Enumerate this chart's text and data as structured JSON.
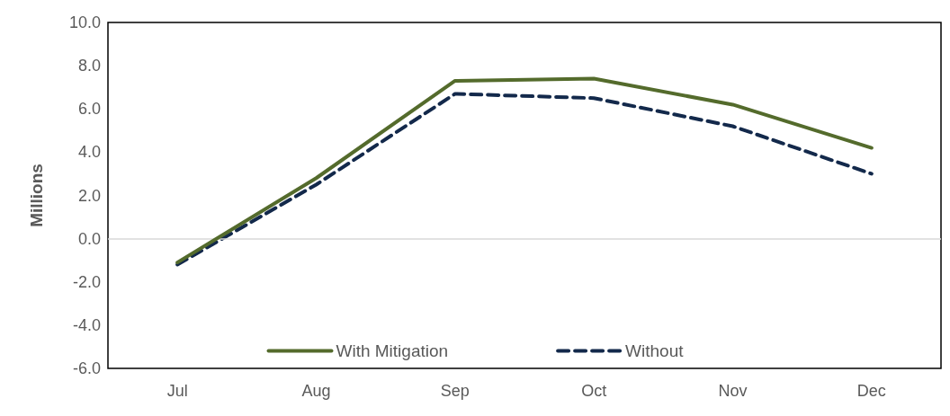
{
  "chart_data": {
    "type": "line",
    "ylabel": "Millions",
    "categories": [
      "Jul",
      "Aug",
      "Sep",
      "Oct",
      "Nov",
      "Dec"
    ],
    "series": [
      {
        "name": "With Mitigation",
        "color": "#546b2c",
        "line_style": "solid",
        "values": [
          -1.1,
          2.8,
          7.3,
          7.4,
          6.2,
          4.2
        ]
      },
      {
        "name": "Without",
        "color": "#13294b",
        "line_style": "dashed",
        "values": [
          -1.2,
          2.5,
          6.7,
          6.5,
          5.2,
          3.0
        ]
      }
    ],
    "ylim": [
      -6,
      10
    ],
    "yticks": [
      {
        "value": -6,
        "label": "-6.0"
      },
      {
        "value": -4,
        "label": "-4.0"
      },
      {
        "value": -2,
        "label": "-2.0"
      },
      {
        "value": 0,
        "label": "0.0"
      },
      {
        "value": 2,
        "label": "2.0"
      },
      {
        "value": 4,
        "label": "4.0"
      },
      {
        "value": 6,
        "label": "6.0"
      },
      {
        "value": 8,
        "label": "8.0"
      },
      {
        "value": 10,
        "label": "10.0"
      }
    ],
    "ref_lines": [
      {
        "axis": "y",
        "value": 0,
        "color": "#d9d9d9"
      }
    ],
    "grid": false,
    "legend": "bottom",
    "marker": "none"
  }
}
